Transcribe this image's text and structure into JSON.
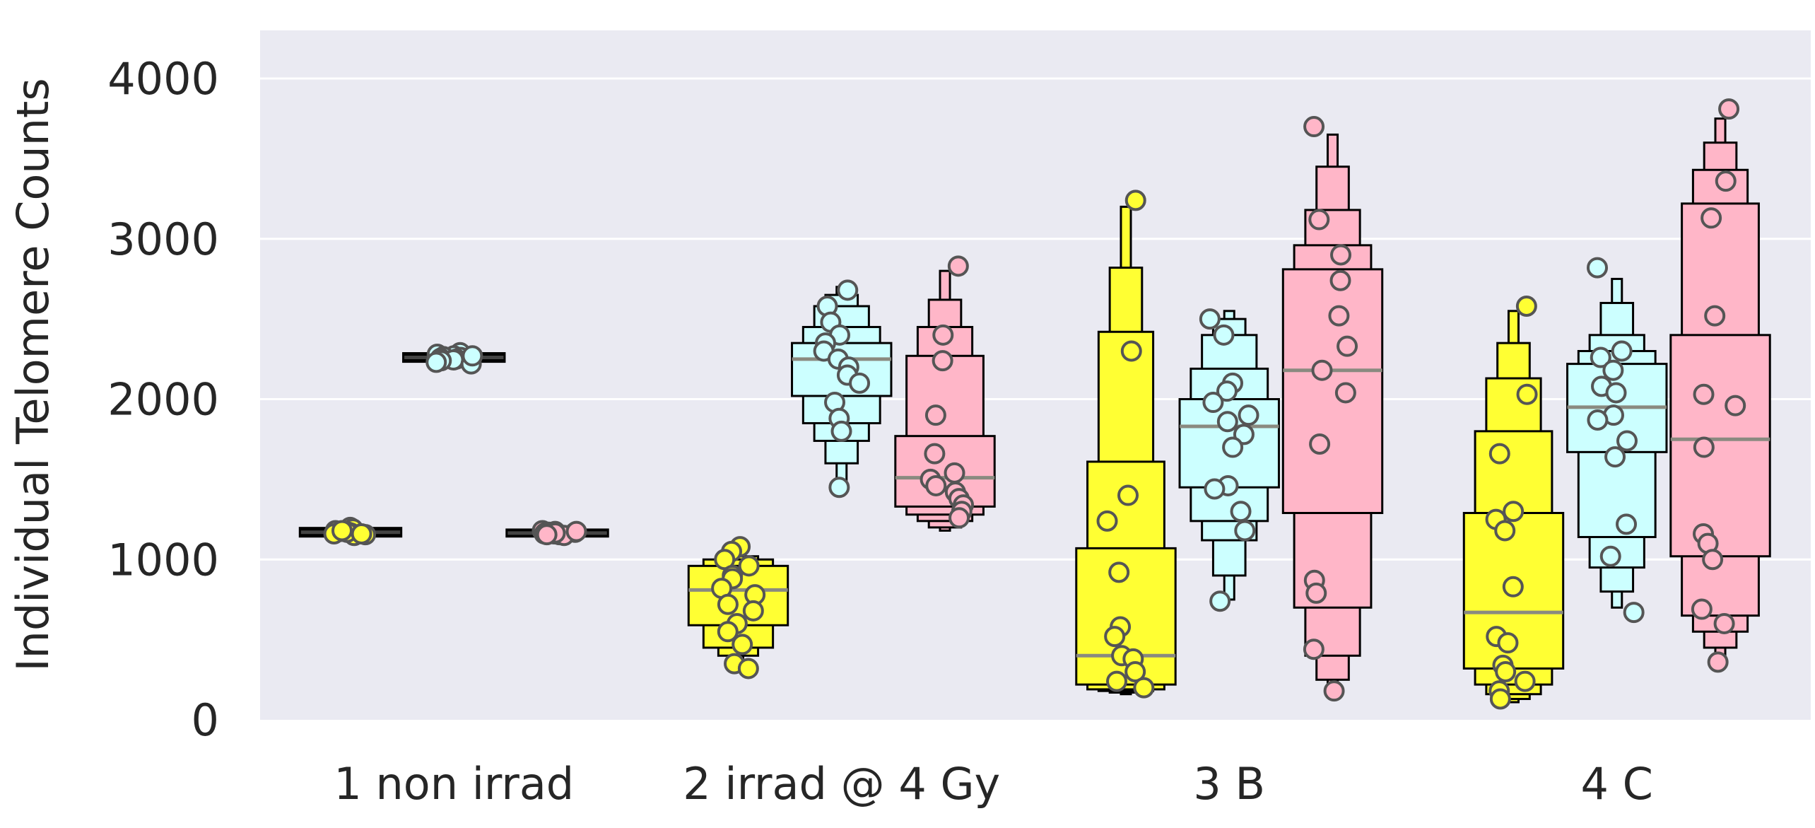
{
  "chart_data": {
    "type": "boxen",
    "title": "",
    "xlabel": "",
    "ylabel": "Individual Telomere Counts",
    "ylim": [
      0,
      4300
    ],
    "yticks": [
      0,
      1000,
      2000,
      3000,
      4000
    ],
    "grid": true,
    "legend": "none",
    "categories": [
      "1 non irrad",
      "2 irrad @ 4 Gy",
      "3 B",
      "4 C"
    ],
    "series_colors": [
      "#ffff33",
      "#ccffff",
      "#ffb6c8"
    ],
    "background_color": "#eaeaf2",
    "groups": [
      {
        "category": "1 non irrad",
        "boxes": [
          {
            "color_index": 0,
            "median": 1170,
            "levels": [
              [
                1150,
                1190
              ]
            ],
            "points": [
              1200,
              1190,
              1180,
              1175,
              1170,
              1165,
              1160,
              1155,
              1150,
              1170,
              1180,
              1160
            ]
          },
          {
            "color_index": 1,
            "median": 2260,
            "levels": [
              [
                2240,
                2280
              ]
            ],
            "points": [
              2290,
              2280,
              2270,
              2265,
              2260,
              2255,
              2250,
              2245,
              2240,
              2230,
              2220,
              2270
            ]
          },
          {
            "color_index": 2,
            "median": 1165,
            "levels": [
              [
                1150,
                1180
              ]
            ],
            "points": [
              1180,
              1175,
              1170,
              1165,
              1160,
              1155,
              1150,
              1170,
              1160,
              1175,
              1165,
              1155
            ]
          }
        ]
      },
      {
        "category": "2 irrad @ 4 Gy",
        "boxes": [
          {
            "color_index": 0,
            "median": 810,
            "levels": [
              [
                590,
                960
              ],
              [
                450,
                1000
              ],
              [
                400,
                1020
              ],
              [
                350,
                1050
              ]
            ],
            "points": [
              1080,
              1050,
              1000,
              960,
              900,
              880,
              820,
              780,
              720,
              680,
              600,
              550,
              470,
              350,
              320
            ]
          },
          {
            "color_index": 1,
            "median": 2250,
            "levels": [
              [
                2020,
                2350
              ],
              [
                1850,
                2450
              ],
              [
                1740,
                2580
              ],
              [
                1600,
                2650
              ],
              [
                1450,
                2700
              ]
            ],
            "points": [
              2680,
              2580,
              2480,
              2400,
              2350,
              2300,
              2250,
              2200,
              2150,
              2100,
              1980,
              1880,
              1800,
              1450
            ]
          },
          {
            "color_index": 2,
            "median": 1510,
            "levels": [
              [
                1330,
                1770
              ],
              [
                1280,
                2270
              ],
              [
                1240,
                2450
              ],
              [
                1200,
                2620
              ],
              [
                1180,
                2800
              ]
            ],
            "points": [
              2830,
              2400,
              2240,
              1900,
              1660,
              1540,
              1500,
              1460,
              1420,
              1380,
              1340,
              1300,
              1260
            ]
          }
        ]
      },
      {
        "category": "3 B",
        "boxes": [
          {
            "color_index": 0,
            "median": 400,
            "levels": [
              [
                220,
                1070
              ],
              [
                190,
                1610
              ],
              [
                180,
                2420
              ],
              [
                170,
                2820
              ],
              [
                160,
                3200
              ]
            ],
            "points": [
              3240,
              2300,
              1400,
              1240,
              920,
              580,
              520,
              400,
              380,
              300,
              240,
              200
            ]
          },
          {
            "color_index": 1,
            "median": 1830,
            "levels": [
              [
                1450,
                2000
              ],
              [
                1240,
                2190
              ],
              [
                1120,
                2400
              ],
              [
                900,
                2500
              ],
              [
                750,
                2550
              ]
            ],
            "points": [
              2500,
              2400,
              2100,
              2050,
              1980,
              1900,
              1860,
              1780,
              1700,
              1460,
              1440,
              1300,
              1180,
              740
            ]
          },
          {
            "color_index": 2,
            "median": 2180,
            "levels": [
              [
                1290,
                2810
              ],
              [
                700,
                2960
              ],
              [
                400,
                3180
              ],
              [
                250,
                3450
              ],
              [
                180,
                3650
              ]
            ],
            "points": [
              3700,
              3120,
              2900,
              2740,
              2520,
              2330,
              2180,
              2040,
              1720,
              870,
              790,
              440,
              180
            ]
          }
        ]
      },
      {
        "category": "4 C",
        "boxes": [
          {
            "color_index": 0,
            "median": 670,
            "levels": [
              [
                320,
                1290
              ],
              [
                220,
                1800
              ],
              [
                160,
                2130
              ],
              [
                130,
                2350
              ],
              [
                110,
                2550
              ]
            ],
            "points": [
              2580,
              2030,
              1660,
              1300,
              1250,
              1180,
              830,
              520,
              480,
              340,
              300,
              240,
              180,
              130
            ]
          },
          {
            "color_index": 1,
            "median": 1950,
            "levels": [
              [
                1670,
                2220
              ],
              [
                1140,
                2300
              ],
              [
                950,
                2400
              ],
              [
                800,
                2600
              ],
              [
                700,
                2750
              ]
            ],
            "points": [
              2820,
              2300,
              2260,
              2180,
              2080,
              2040,
              1900,
              1870,
              1740,
              1640,
              1220,
              1020,
              670
            ]
          },
          {
            "color_index": 2,
            "median": 1750,
            "levels": [
              [
                1020,
                2400
              ],
              [
                650,
                3220
              ],
              [
                550,
                3430
              ],
              [
                450,
                3600
              ],
              [
                380,
                3750
              ]
            ],
            "points": [
              3810,
              3360,
              3130,
              2520,
              2030,
              1960,
              1700,
              1160,
              1100,
              1000,
              690,
              600,
              360
            ]
          }
        ]
      }
    ]
  }
}
